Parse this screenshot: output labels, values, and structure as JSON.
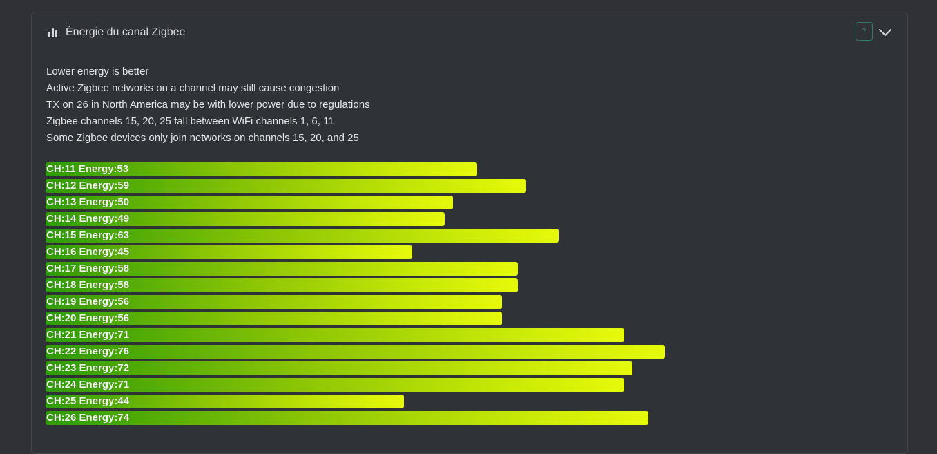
{
  "card": {
    "title": "Énergie du canal Zigbee",
    "header_icon": "bar-chart-icon",
    "help_label": "?",
    "collapse_icon": "chevron-down-icon"
  },
  "notes": [
    "Lower energy is better",
    "Active Zigbee networks on a channel may still cause congestion",
    "TX on 26 in North America may be with lower power due to regulations",
    "Zigbee channels 15, 20, 25 fall between WiFi channels 1, 6, 11",
    "Some Zigbee devices only join networks on channels 15, 20, and 25"
  ],
  "colors": {
    "bar_start": "#2e9b07",
    "bar_end": "#e6f90a",
    "help_accent": "#2f8a70"
  },
  "chart_data": {
    "type": "bar",
    "orientation": "horizontal",
    "max_value": 100,
    "categories": [
      "11",
      "12",
      "13",
      "14",
      "15",
      "16",
      "17",
      "18",
      "19",
      "20",
      "21",
      "22",
      "23",
      "24",
      "25",
      "26"
    ],
    "values": [
      53,
      59,
      50,
      49,
      63,
      45,
      58,
      58,
      56,
      56,
      71,
      76,
      72,
      71,
      44,
      74
    ],
    "labels": [
      "CH:11 Energy:53",
      "CH:12 Energy:59",
      "CH:13 Energy:50",
      "CH:14 Energy:49",
      "CH:15 Energy:63",
      "CH:16 Energy:45",
      "CH:17 Energy:58",
      "CH:18 Energy:58",
      "CH:19 Energy:56",
      "CH:20 Energy:56",
      "CH:21 Energy:71",
      "CH:22 Energy:76",
      "CH:23 Energy:72",
      "CH:24 Energy:71",
      "CH:25 Energy:44",
      "CH:26 Energy:74"
    ]
  }
}
